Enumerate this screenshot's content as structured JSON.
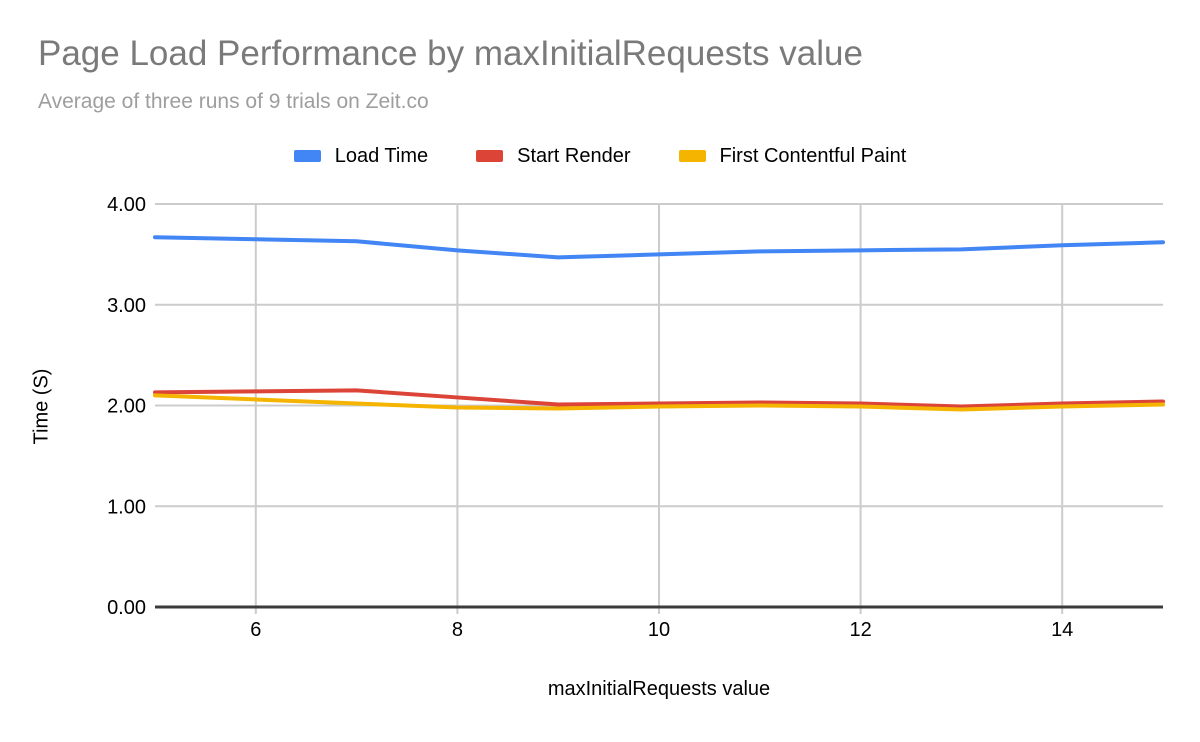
{
  "chart_data": {
    "type": "line",
    "title": "Page Load Performance by maxInitialRequests value",
    "subtitle": "Average of three runs of 9 trials on Zeit.co",
    "xlabel": "maxInitialRequests value",
    "ylabel": "Time (S)",
    "x": [
      5,
      6,
      7,
      8,
      9,
      10,
      11,
      12,
      13,
      14,
      15
    ],
    "xlim": [
      5,
      15
    ],
    "ylim": [
      0,
      4
    ],
    "x_ticks": [
      6,
      8,
      10,
      12,
      14
    ],
    "x_tick_labels": [
      "6",
      "8",
      "10",
      "12",
      "14"
    ],
    "y_ticks": [
      0,
      1,
      2,
      3,
      4
    ],
    "y_tick_labels": [
      "0.00",
      "1.00",
      "2.00",
      "3.00",
      "4.00"
    ],
    "grid": true,
    "legend_position": "top",
    "series": [
      {
        "name": "Load Time",
        "color": "#4285F4",
        "values": [
          3.67,
          3.65,
          3.63,
          3.54,
          3.47,
          3.5,
          3.53,
          3.54,
          3.55,
          3.59,
          3.62
        ]
      },
      {
        "name": "Start Render",
        "color": "#DB4437",
        "values": [
          2.13,
          2.14,
          2.15,
          2.08,
          2.01,
          2.02,
          2.03,
          2.02,
          1.99,
          2.02,
          2.04
        ]
      },
      {
        "name": "First Contentful Paint",
        "color": "#F4B400",
        "values": [
          2.1,
          2.06,
          2.02,
          1.98,
          1.97,
          1.99,
          2.0,
          1.99,
          1.96,
          1.99,
          2.01
        ]
      }
    ],
    "colors": {
      "gridline": "#cccccc",
      "axis_line": "#3b3b3b",
      "tick_label": "#000000",
      "title": "#7a7a7a",
      "subtitle": "#9e9e9e"
    }
  }
}
